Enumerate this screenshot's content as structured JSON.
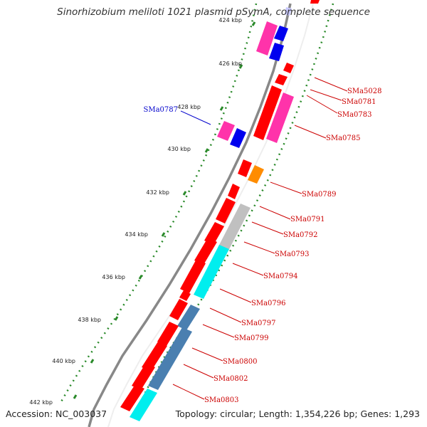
{
  "title": "Sinorhizobium meliloti 1021 plasmid pSymA, complete sequence",
  "footer": {
    "accession": "Accession: NC_003037",
    "summary": "Topology: circular; Length: 1,354,226 bp; Genes: 1,293"
  },
  "colors": {
    "red": "#ff0000",
    "magenta": "#ff33aa",
    "blue": "#0000ee",
    "orange": "#ff8c00",
    "gray": "#c0c0c0",
    "cyan": "#00eeee",
    "steelblue": "#4a7fb0",
    "tick_green": "#2a8a2a",
    "backbone": "#888888",
    "label_red": "#cc0000",
    "label_blue": "#0000cc"
  },
  "ticks": [
    {
      "label": "424 kbp",
      "pos": 424
    },
    {
      "label": "426 kbp",
      "pos": 426
    },
    {
      "label": "428 kbp",
      "pos": 428
    },
    {
      "label": "430 kbp",
      "pos": 430
    },
    {
      "label": "432 kbp",
      "pos": 432
    },
    {
      "label": "434 kbp",
      "pos": 434
    },
    {
      "label": "436 kbp",
      "pos": 436
    },
    {
      "label": "438 kbp",
      "pos": 438
    },
    {
      "label": "440 kbp",
      "pos": 440
    },
    {
      "label": "442 kbp",
      "pos": 442
    }
  ],
  "gene_labels": [
    {
      "name": "SMa5028",
      "color": "label_red"
    },
    {
      "name": "SMa0781",
      "color": "label_red"
    },
    {
      "name": "SMa0783",
      "color": "label_red"
    },
    {
      "name": "SMa0785",
      "color": "label_red"
    },
    {
      "name": "SMa0787",
      "color": "label_blue"
    },
    {
      "name": "SMa0789",
      "color": "label_red"
    },
    {
      "name": "SMa0791",
      "color": "label_red"
    },
    {
      "name": "SMa0792",
      "color": "label_red"
    },
    {
      "name": "SMa0793",
      "color": "label_red"
    },
    {
      "name": "SMa0794",
      "color": "label_red"
    },
    {
      "name": "SMa0796",
      "color": "label_red"
    },
    {
      "name": "SMa0797",
      "color": "label_red"
    },
    {
      "name": "SMa0799",
      "color": "label_red"
    },
    {
      "name": "SMa0800",
      "color": "label_red"
    },
    {
      "name": "SMa0802",
      "color": "label_red"
    },
    {
      "name": "SMa0803",
      "color": "label_red"
    }
  ]
}
